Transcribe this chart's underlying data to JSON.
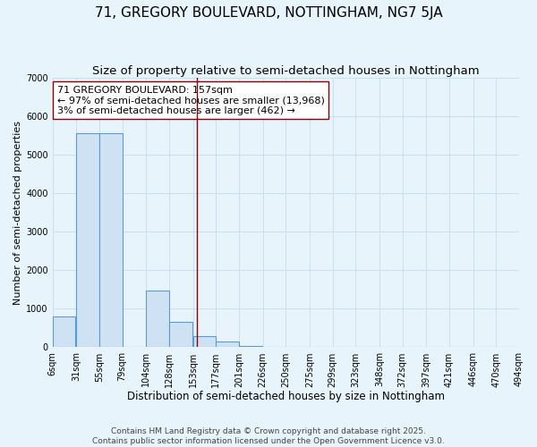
{
  "title": "71, GREGORY BOULEVARD, NOTTINGHAM, NG7 5JA",
  "subtitle": "Size of property relative to semi-detached houses in Nottingham",
  "xlabel": "Distribution of semi-detached houses by size in Nottingham",
  "ylabel": "Number of semi-detached properties",
  "footnote1": "Contains HM Land Registry data © Crown copyright and database right 2025.",
  "footnote2": "Contains public sector information licensed under the Open Government Licence v3.0.",
  "bar_left_edges": [
    6,
    31,
    55,
    79,
    104,
    128,
    153,
    177,
    201,
    226,
    250,
    275,
    299,
    323,
    348,
    372,
    397,
    421,
    446,
    470
  ],
  "bar_heights": [
    800,
    5550,
    5550,
    0,
    1480,
    660,
    290,
    140,
    30,
    0,
    0,
    0,
    0,
    0,
    0,
    0,
    0,
    0,
    0,
    0
  ],
  "bin_width": 24,
  "bar_facecolor": "#cfe2f3",
  "bar_edgecolor": "#5b9bd5",
  "xlim_left": 6,
  "xlim_right": 494,
  "ylim_top": 7000,
  "ylim_bottom": 0,
  "yticks": [
    0,
    1000,
    2000,
    3000,
    4000,
    5000,
    6000,
    7000
  ],
  "xtick_labels": [
    "6sqm",
    "31sqm",
    "55sqm",
    "79sqm",
    "104sqm",
    "128sqm",
    "153sqm",
    "177sqm",
    "201sqm",
    "226sqm",
    "250sqm",
    "275sqm",
    "299sqm",
    "323sqm",
    "348sqm",
    "372sqm",
    "397sqm",
    "421sqm",
    "446sqm",
    "470sqm",
    "494sqm"
  ],
  "xtick_positions": [
    6,
    31,
    55,
    79,
    104,
    128,
    153,
    177,
    201,
    226,
    250,
    275,
    299,
    323,
    348,
    372,
    397,
    421,
    446,
    470,
    494
  ],
  "vline_x": 157,
  "vline_color": "#8b0000",
  "annotation_line1": "71 GREGORY BOULEVARD: 157sqm",
  "annotation_line2": "← 97% of semi-detached houses are smaller (13,968)",
  "annotation_line3": "3% of semi-detached houses are larger (462) →",
  "annotation_facecolor": "white",
  "annotation_edgecolor": "#8b0000",
  "grid_color": "#c5ddf0",
  "background_color": "#e8f4fc",
  "title_fontsize": 11,
  "subtitle_fontsize": 9.5,
  "xlabel_fontsize": 8.5,
  "ylabel_fontsize": 8,
  "tick_fontsize": 7,
  "annotation_fontsize": 8,
  "footnote_fontsize": 6.5
}
